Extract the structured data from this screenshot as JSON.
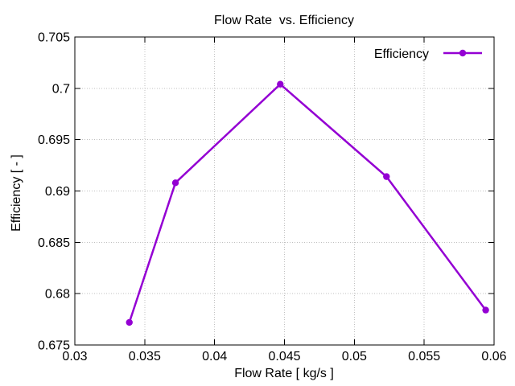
{
  "chart_data": {
    "type": "line",
    "title": "Flow Rate  vs. Efficiency",
    "xlabel": "Flow Rate [ kg/s ]",
    "ylabel": "Efficiency [ - ]",
    "xlim": [
      0.03,
      0.06
    ],
    "ylim": [
      0.675,
      0.705
    ],
    "xticks": [
      0.03,
      0.035,
      0.04,
      0.045,
      0.05,
      0.055,
      0.06
    ],
    "yticks": [
      0.675,
      0.68,
      0.685,
      0.69,
      0.695,
      0.7,
      0.705
    ],
    "xtick_labels": [
      "0.03",
      "0.035",
      "0.04",
      "0.045",
      "0.05",
      "0.055",
      "0.06"
    ],
    "ytick_labels": [
      "0.675",
      "0.68",
      "0.685",
      "0.69",
      "0.695",
      "0.7",
      "0.705"
    ],
    "grid": true,
    "legend": {
      "label": "Efficiency",
      "position": "top-right"
    },
    "series": [
      {
        "name": "Efficiency",
        "color": "#9400d3",
        "marker": "circle",
        "points": [
          {
            "x": 0.0339,
            "y": 0.6772
          },
          {
            "x": 0.0372,
            "y": 0.6908
          },
          {
            "x": 0.0447,
            "y": 0.7004
          },
          {
            "x": 0.0523,
            "y": 0.6914
          },
          {
            "x": 0.0594,
            "y": 0.6784
          }
        ]
      }
    ],
    "colors": {
      "line": "#9400d3",
      "grid": "#c0c0c0",
      "axis": "#000000",
      "background": "#ffffff",
      "text": "#000000"
    }
  }
}
